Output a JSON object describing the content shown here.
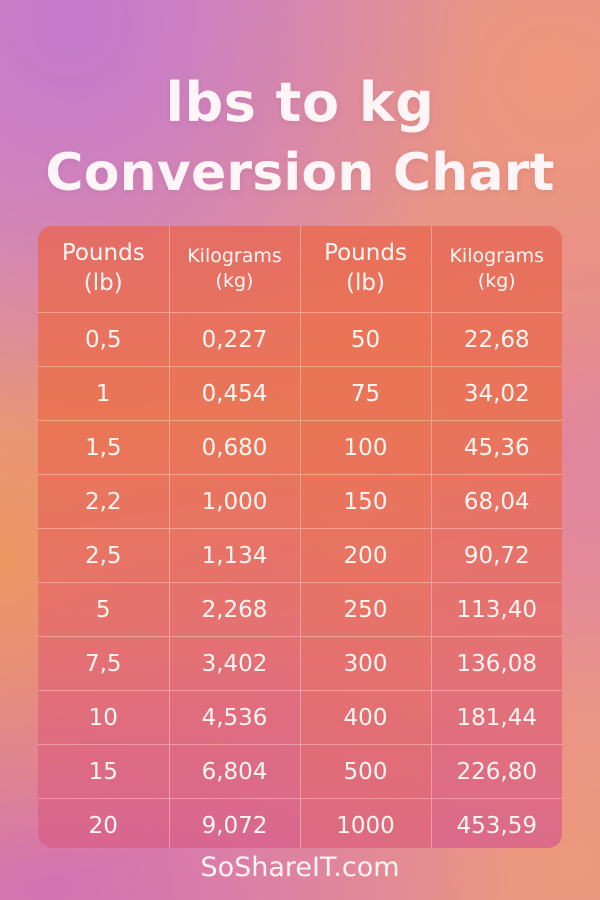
{
  "title": {
    "line1": "lbs  to kg",
    "line2": "Conversion Chart"
  },
  "table": {
    "headers": [
      {
        "unit": "Pounds",
        "abbr": "(lb)"
      },
      {
        "unit": "Kilograms",
        "abbr": "(kg)"
      },
      {
        "unit": "Pounds",
        "abbr": "(lb)"
      },
      {
        "unit": "Kilograms",
        "abbr": "(kg)"
      }
    ],
    "rows": [
      [
        "0,5",
        "0,227",
        "50",
        "22,68"
      ],
      [
        "1",
        "0,454",
        "75",
        "34,02"
      ],
      [
        "1,5",
        "0,680",
        "100",
        "45,36"
      ],
      [
        "2,2",
        "1,000",
        "150",
        "68,04"
      ],
      [
        "2,5",
        "1,134",
        "200",
        "90,72"
      ],
      [
        "5",
        "2,268",
        "250",
        "113,40"
      ],
      [
        "7,5",
        "3,402",
        "300",
        "136,08"
      ],
      [
        "10",
        "4,536",
        "400",
        "181,44"
      ],
      [
        "15",
        "6,804",
        "500",
        "226,80"
      ],
      [
        "20",
        "9,072",
        "1000",
        "453,59"
      ]
    ]
  },
  "footer": {
    "site": "SoShareIT.com"
  },
  "colors": {
    "text": "#fff4f6",
    "table_top": "#e86856",
    "table_bottom": "#d8628c"
  }
}
